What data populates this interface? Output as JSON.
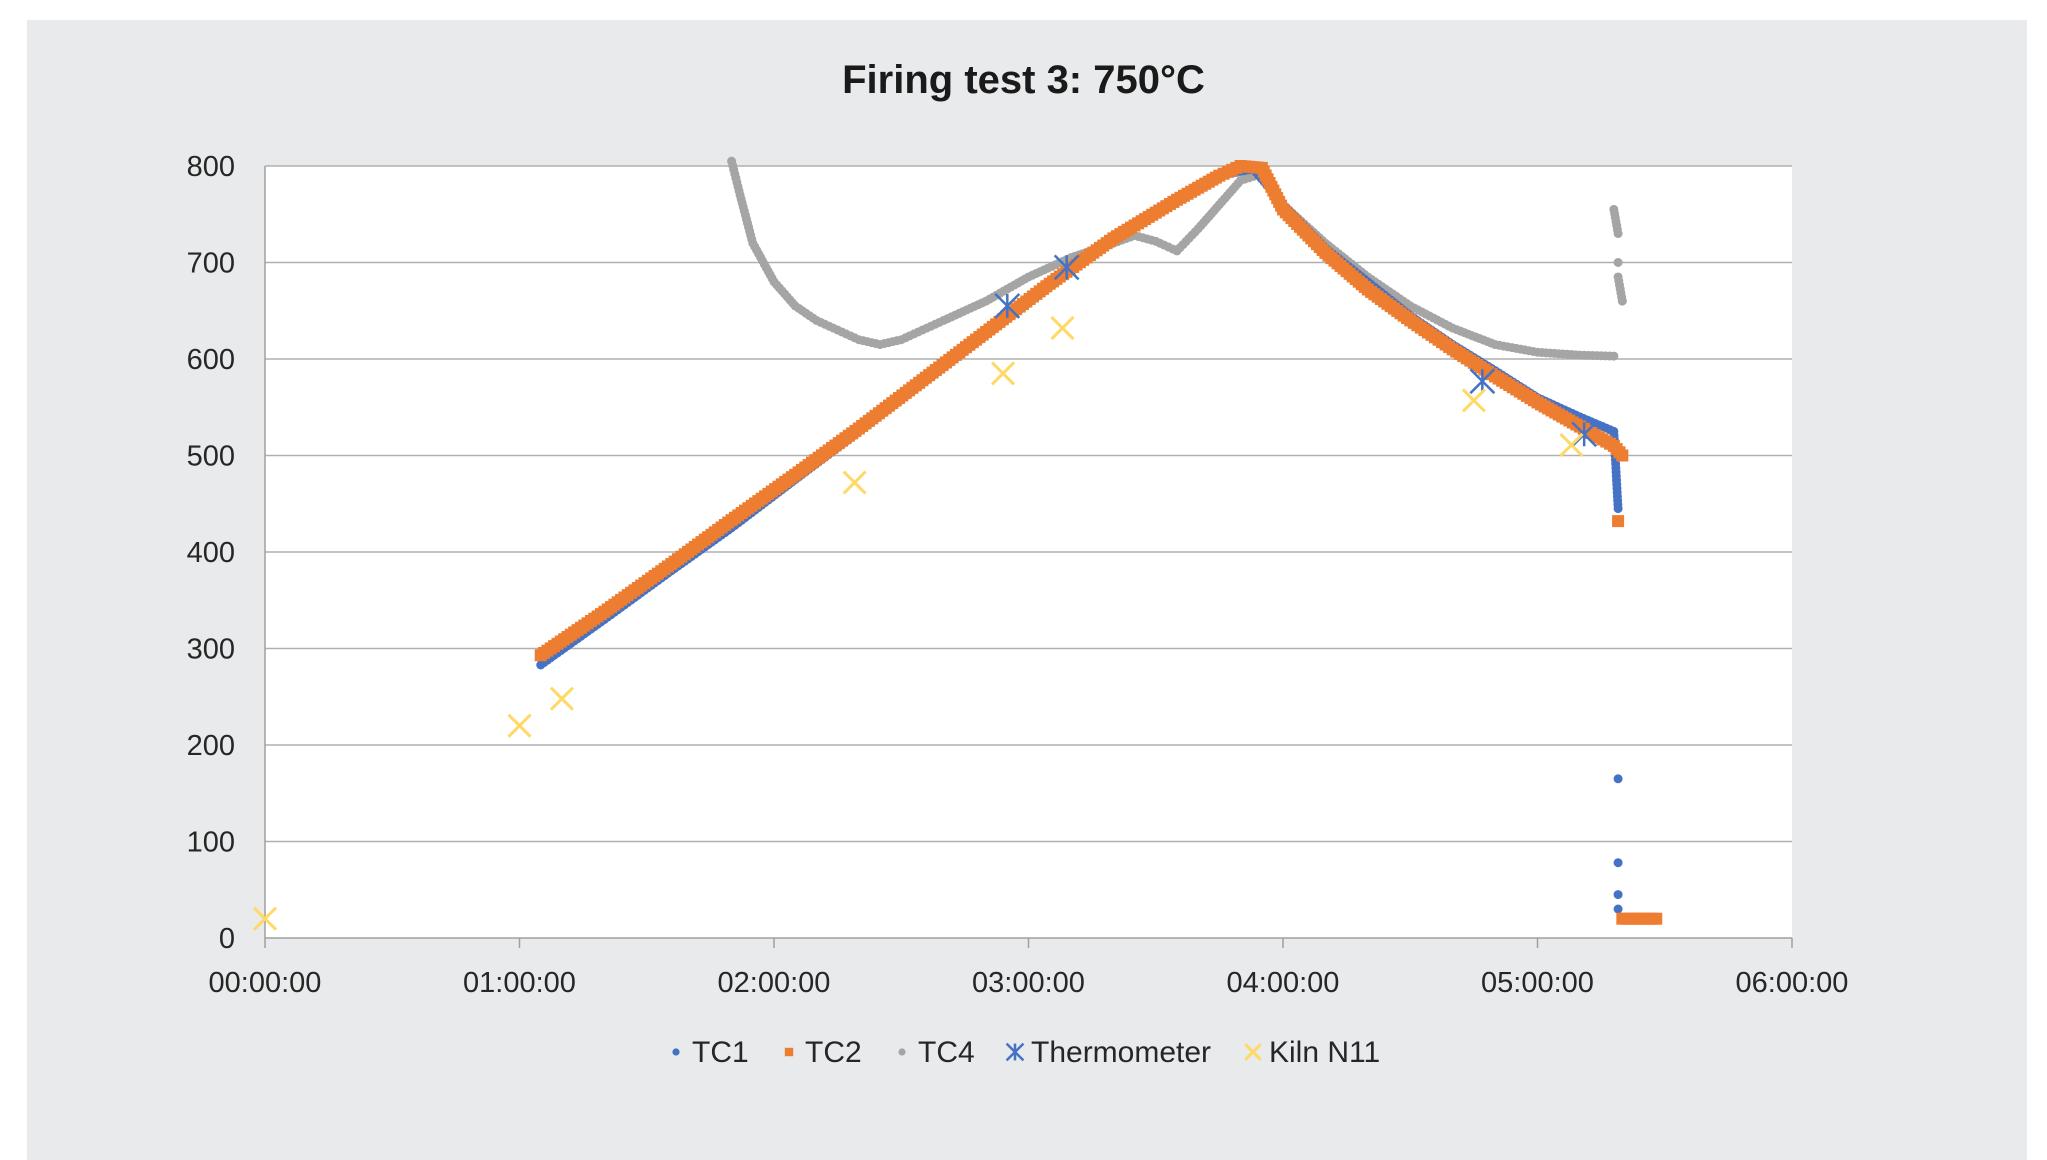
{
  "chart_data": {
    "type": "scatter",
    "title": "Firing test 3: 750°C",
    "xlabel": "",
    "ylabel": "",
    "x_unit": "minutes",
    "xlim": [
      0,
      360
    ],
    "ylim": [
      0,
      800
    ],
    "x_ticks": [
      {
        "value": 0,
        "label": "00:00:00"
      },
      {
        "value": 60,
        "label": "01:00:00"
      },
      {
        "value": 120,
        "label": "02:00:00"
      },
      {
        "value": 180,
        "label": "03:00:00"
      },
      {
        "value": 240,
        "label": "04:00:00"
      },
      {
        "value": 300,
        "label": "05:00:00"
      },
      {
        "value": 360,
        "label": "06:00:00"
      }
    ],
    "y_ticks": [
      0,
      100,
      200,
      300,
      400,
      500,
      600,
      700,
      800
    ],
    "grid": "horizontal",
    "legend_position": "bottom",
    "series": [
      {
        "name": "TC1",
        "color": "#4472c4",
        "marker": "dot",
        "points": [
          [
            65,
            283
          ],
          [
            80,
            330
          ],
          [
            95,
            378
          ],
          [
            110,
            425
          ],
          [
            125,
            475
          ],
          [
            140,
            525
          ],
          [
            155,
            575
          ],
          [
            170,
            625
          ],
          [
            185,
            675
          ],
          [
            200,
            725
          ],
          [
            215,
            765
          ],
          [
            225,
            790
          ],
          [
            233,
            797
          ],
          [
            240,
            760
          ],
          [
            250,
            715
          ],
          [
            260,
            680
          ],
          [
            270,
            645
          ],
          [
            280,
            615
          ],
          [
            290,
            588
          ],
          [
            300,
            560
          ],
          [
            310,
            540
          ],
          [
            318,
            525
          ],
          [
            319,
            445
          ],
          [
            319,
            165
          ],
          [
            319,
            78
          ],
          [
            319,
            45
          ],
          [
            319,
            30
          ]
        ]
      },
      {
        "name": "TC2",
        "color": "#ed7d31",
        "marker": "square",
        "points": [
          [
            65,
            293
          ],
          [
            80,
            338
          ],
          [
            95,
            385
          ],
          [
            110,
            433
          ],
          [
            125,
            480
          ],
          [
            140,
            528
          ],
          [
            155,
            578
          ],
          [
            170,
            628
          ],
          [
            185,
            678
          ],
          [
            200,
            725
          ],
          [
            215,
            765
          ],
          [
            225,
            790
          ],
          [
            230,
            800
          ],
          [
            235,
            798
          ],
          [
            240,
            755
          ],
          [
            250,
            710
          ],
          [
            260,
            672
          ],
          [
            270,
            640
          ],
          [
            280,
            610
          ],
          [
            290,
            582
          ],
          [
            300,
            555
          ],
          [
            310,
            530
          ],
          [
            318,
            510
          ],
          [
            320,
            500
          ],
          [
            319,
            432
          ],
          [
            320,
            20
          ],
          [
            322,
            20
          ],
          [
            325,
            20
          ],
          [
            328,
            20
          ]
        ]
      },
      {
        "name": "TC4",
        "color": "#a5a5a5",
        "marker": "dot",
        "points": [
          [
            110,
            805
          ],
          [
            112,
            770
          ],
          [
            115,
            720
          ],
          [
            120,
            680
          ],
          [
            125,
            655
          ],
          [
            130,
            640
          ],
          [
            135,
            630
          ],
          [
            140,
            620
          ],
          [
            145,
            615
          ],
          [
            150,
            620
          ],
          [
            155,
            630
          ],
          [
            160,
            640
          ],
          [
            170,
            660
          ],
          [
            180,
            685
          ],
          [
            190,
            705
          ],
          [
            200,
            720
          ],
          [
            205,
            728
          ],
          [
            210,
            722
          ],
          [
            215,
            712
          ],
          [
            220,
            735
          ],
          [
            225,
            760
          ],
          [
            230,
            785
          ],
          [
            235,
            792
          ],
          [
            240,
            760
          ],
          [
            250,
            720
          ],
          [
            260,
            685
          ],
          [
            270,
            655
          ],
          [
            280,
            632
          ],
          [
            290,
            615
          ],
          [
            300,
            607
          ],
          [
            310,
            604
          ],
          [
            318,
            603
          ],
          [
            318,
            755
          ],
          [
            319,
            730
          ],
          [
            319,
            700
          ],
          [
            319,
            685
          ],
          [
            320,
            660
          ]
        ]
      },
      {
        "name": "Thermometer",
        "color": "#4472c4",
        "marker": "asterisk",
        "points": [
          [
            175,
            655
          ],
          [
            189,
            695
          ],
          [
            287,
            577
          ],
          [
            311,
            522
          ]
        ]
      },
      {
        "name": "Kiln N11",
        "color": "#ffd966",
        "marker": "x",
        "points": [
          [
            0,
            20
          ],
          [
            60,
            220
          ],
          [
            70,
            248
          ],
          [
            139,
            472
          ],
          [
            174,
            585
          ],
          [
            188,
            632
          ],
          [
            285,
            557
          ],
          [
            308,
            511
          ]
        ]
      }
    ]
  }
}
